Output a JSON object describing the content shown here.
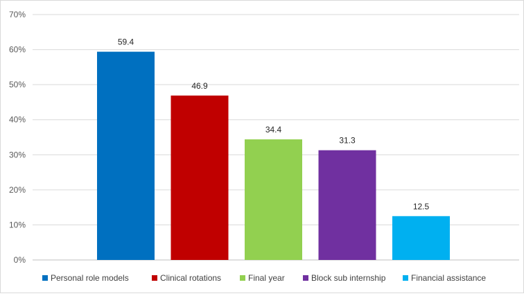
{
  "chart_data": {
    "type": "bar",
    "title": "",
    "xlabel": "",
    "ylabel": "",
    "ylim": [
      0,
      70
    ],
    "y_ticks": [
      0,
      10,
      20,
      30,
      40,
      50,
      60,
      70
    ],
    "y_tick_format": "%",
    "grid": true,
    "legend_position": "bottom",
    "series": [
      {
        "name": "Personal role models",
        "value": 59.4,
        "color": "#0070c0"
      },
      {
        "name": "Clinical rotations",
        "value": 46.9,
        "color": "#c00000"
      },
      {
        "name": "Final year",
        "value": 34.4,
        "color": "#92d050"
      },
      {
        "name": "Block sub internship",
        "value": 31.3,
        "color": "#7030a0"
      },
      {
        "name": "Financial assistance",
        "value": 12.5,
        "color": "#00b0f0"
      }
    ]
  }
}
